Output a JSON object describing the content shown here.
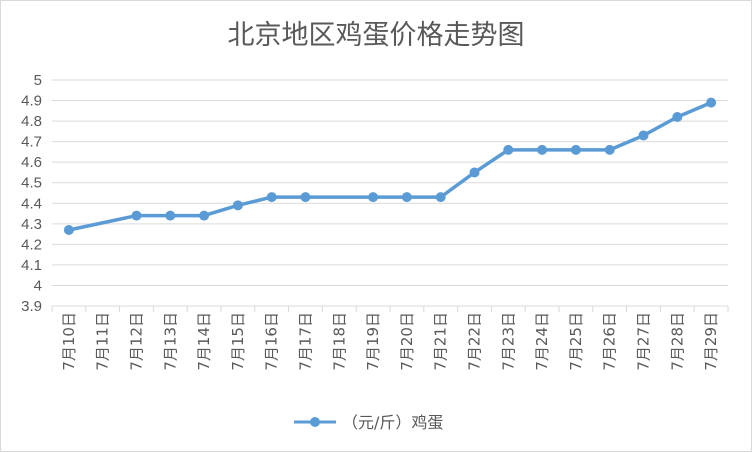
{
  "chart_data": {
    "type": "line",
    "title": "北京地区鸡蛋价格走势图",
    "categories": [
      "7月10日",
      "7月11日",
      "7月12日",
      "7月13日",
      "7月14日",
      "7月15日",
      "7月16日",
      "7月17日",
      "7月18日",
      "7月19日",
      "7月20日",
      "7月21日",
      "7月22日",
      "7月23日",
      "7月24日",
      "7月25日",
      "7月26日",
      "7月27日",
      "7月28日",
      "7月29日"
    ],
    "series": [
      {
        "name": "（元/斤）鸡蛋",
        "values": [
          4.27,
          null,
          4.34,
          4.34,
          4.34,
          4.39,
          4.43,
          4.43,
          null,
          4.43,
          4.43,
          4.43,
          4.55,
          4.66,
          4.66,
          4.66,
          4.66,
          4.73,
          4.82,
          4.89
        ]
      }
    ],
    "y_ticks": [
      "3.9",
      "4",
      "4.1",
      "4.2",
      "4.3",
      "4.4",
      "4.5",
      "4.6",
      "4.7",
      "4.8",
      "4.9",
      "5"
    ],
    "ylim": [
      3.9,
      5
    ],
    "grid": true,
    "legend_position": "bottom",
    "line_color": "#5b9bd5",
    "grid_color": "#d9d9d9"
  }
}
